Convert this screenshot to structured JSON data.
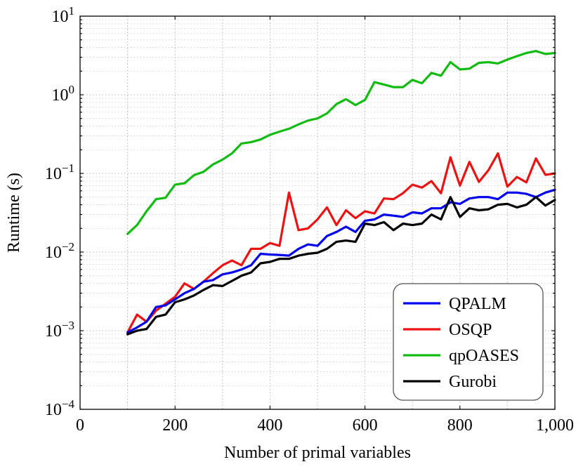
{
  "chart_data": {
    "type": "line",
    "xlabel": "Number of primal variables",
    "ylabel": "Runtime (s)",
    "xlim": [
      0,
      1000
    ],
    "ylim": [
      0.0001,
      10
    ],
    "yscale": "log",
    "grid": true,
    "legend_position": "bottom-right",
    "x_ticks": [
      {
        "value": 0,
        "label": "0"
      },
      {
        "value": 200,
        "label": "200"
      },
      {
        "value": 400,
        "label": "400"
      },
      {
        "value": 600,
        "label": "600"
      },
      {
        "value": 800,
        "label": "800"
      },
      {
        "value": 1000,
        "label": "1,000"
      }
    ],
    "y_ticks": [
      {
        "value": 0.0001,
        "base": "10",
        "exp": "−4"
      },
      {
        "value": 0.001,
        "base": "10",
        "exp": "−3"
      },
      {
        "value": 0.01,
        "base": "10",
        "exp": "−2"
      },
      {
        "value": 0.1,
        "base": "10",
        "exp": "−1"
      },
      {
        "value": 1,
        "base": "10",
        "exp": "0"
      },
      {
        "value": 10,
        "base": "10",
        "exp": "1"
      }
    ],
    "x": [
      100,
      120,
      140,
      160,
      180,
      200,
      220,
      240,
      260,
      280,
      300,
      320,
      340,
      360,
      380,
      400,
      420,
      440,
      460,
      480,
      500,
      520,
      540,
      560,
      580,
      600,
      620,
      640,
      660,
      680,
      700,
      720,
      740,
      760,
      780,
      800,
      820,
      840,
      860,
      880,
      900,
      920,
      940,
      960,
      980,
      1000
    ],
    "series": [
      {
        "name": "QPALM",
        "color": "#0000ee",
        "values": [
          0.00095,
          0.0011,
          0.0013,
          0.002,
          0.0021,
          0.0025,
          0.003,
          0.0034,
          0.0042,
          0.0044,
          0.0052,
          0.0055,
          0.006,
          0.0068,
          0.0095,
          0.0093,
          0.0092,
          0.009,
          0.011,
          0.0125,
          0.012,
          0.016,
          0.018,
          0.021,
          0.018,
          0.025,
          0.026,
          0.03,
          0.029,
          0.028,
          0.032,
          0.031,
          0.036,
          0.036,
          0.043,
          0.041,
          0.048,
          0.05,
          0.05,
          0.047,
          0.057,
          0.057,
          0.055,
          0.05,
          0.057,
          0.062
        ]
      },
      {
        "name": "OSQP",
        "color": "#ee1111",
        "values": [
          0.00095,
          0.0016,
          0.0013,
          0.0018,
          0.0022,
          0.0027,
          0.004,
          0.0034,
          0.0042,
          0.0054,
          0.0068,
          0.0078,
          0.0068,
          0.011,
          0.011,
          0.013,
          0.012,
          0.057,
          0.019,
          0.02,
          0.026,
          0.037,
          0.022,
          0.034,
          0.027,
          0.033,
          0.031,
          0.048,
          0.047,
          0.056,
          0.072,
          0.066,
          0.08,
          0.056,
          0.16,
          0.07,
          0.14,
          0.078,
          0.11,
          0.18,
          0.068,
          0.09,
          0.077,
          0.155,
          0.096,
          0.1
        ]
      },
      {
        "name": "qpOASES",
        "color": "#11bb11",
        "values": [
          0.017,
          0.022,
          0.033,
          0.047,
          0.049,
          0.072,
          0.075,
          0.095,
          0.105,
          0.13,
          0.15,
          0.18,
          0.24,
          0.25,
          0.27,
          0.31,
          0.34,
          0.37,
          0.42,
          0.47,
          0.5,
          0.58,
          0.76,
          0.88,
          0.74,
          0.86,
          1.45,
          1.35,
          1.25,
          1.25,
          1.55,
          1.4,
          1.9,
          1.75,
          2.6,
          2.1,
          2.15,
          2.55,
          2.6,
          2.5,
          2.8,
          3.1,
          3.4,
          3.6,
          3.3,
          3.4
        ]
      },
      {
        "name": "Gurobi",
        "color": "#000000",
        "values": [
          0.0009,
          0.001,
          0.00105,
          0.0015,
          0.0016,
          0.0023,
          0.0025,
          0.0028,
          0.0033,
          0.0038,
          0.0037,
          0.0043,
          0.005,
          0.0055,
          0.0072,
          0.0075,
          0.0082,
          0.0082,
          0.009,
          0.0095,
          0.0098,
          0.011,
          0.0135,
          0.014,
          0.0135,
          0.023,
          0.022,
          0.024,
          0.019,
          0.023,
          0.022,
          0.023,
          0.03,
          0.026,
          0.05,
          0.028,
          0.036,
          0.034,
          0.035,
          0.04,
          0.041,
          0.037,
          0.04,
          0.05,
          0.039,
          0.046
        ]
      }
    ]
  }
}
